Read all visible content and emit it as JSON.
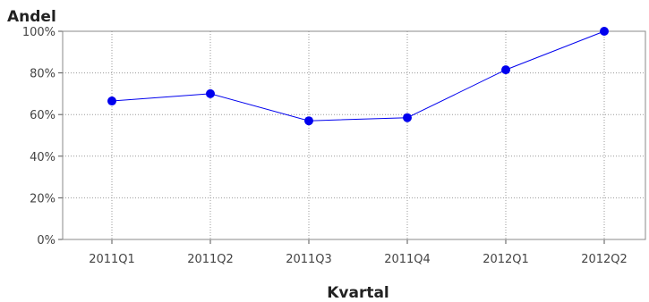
{
  "chart_data": {
    "type": "line",
    "title": "",
    "ylabel": "Andel",
    "xlabel": "Kvartal",
    "categories": [
      "2011Q1",
      "2011Q2",
      "2011Q3",
      "2011Q4",
      "2012Q1",
      "2012Q2"
    ],
    "series": [
      {
        "values": [
          66.5,
          70,
          57,
          58.5,
          81.5,
          100
        ],
        "color": "#0000ee"
      }
    ],
    "ylim": [
      0,
      100
    ],
    "yticks": [
      0,
      20,
      40,
      60,
      80,
      100
    ],
    "ytick_labels": [
      "0%",
      "20%",
      "40%",
      "60%",
      "80%",
      "100%"
    ],
    "grid": true,
    "legend": "none"
  }
}
